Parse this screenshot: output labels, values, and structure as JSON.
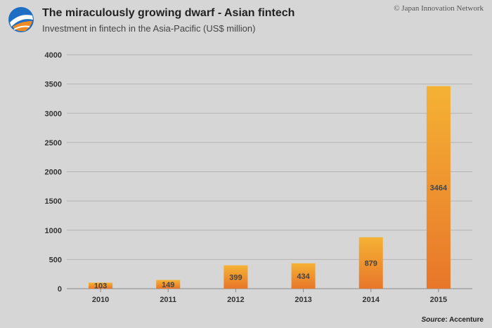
{
  "header": {
    "title": "The miraculously growing dwarf - Asian fintech",
    "subtitle": "Investment in fintech in the Asia-Pacific (US$ million)",
    "copyright": "© Japan Innovation Network",
    "logo_icon": "blue-orange-globe-logo-icon"
  },
  "footer": {
    "source_label": "Source",
    "source_value": ": Accenture"
  },
  "colors": {
    "background": "#d6d6d6",
    "bar_top": "#f5b234",
    "bar_bottom": "#e8762a",
    "gridline": "#b3b3b3",
    "axis": "#888888"
  },
  "chart_data": {
    "type": "bar",
    "title": "The miraculously growing dwarf - Asian fintech",
    "subtitle": "Investment in fintech in the Asia-Pacific (US$ million)",
    "xlabel": "",
    "ylabel": "",
    "categories": [
      "2010",
      "2011",
      "2012",
      "2013",
      "2014",
      "2015"
    ],
    "values": [
      103,
      149,
      399,
      434,
      879,
      3464
    ],
    "data_labels": [
      "103",
      "149",
      "399",
      "434",
      "879",
      "3464"
    ],
    "ylim": [
      0,
      4000
    ],
    "yticks": [
      0,
      500,
      1000,
      1500,
      2000,
      2500,
      3000,
      3500,
      4000
    ],
    "grid": true,
    "legend": "none"
  }
}
